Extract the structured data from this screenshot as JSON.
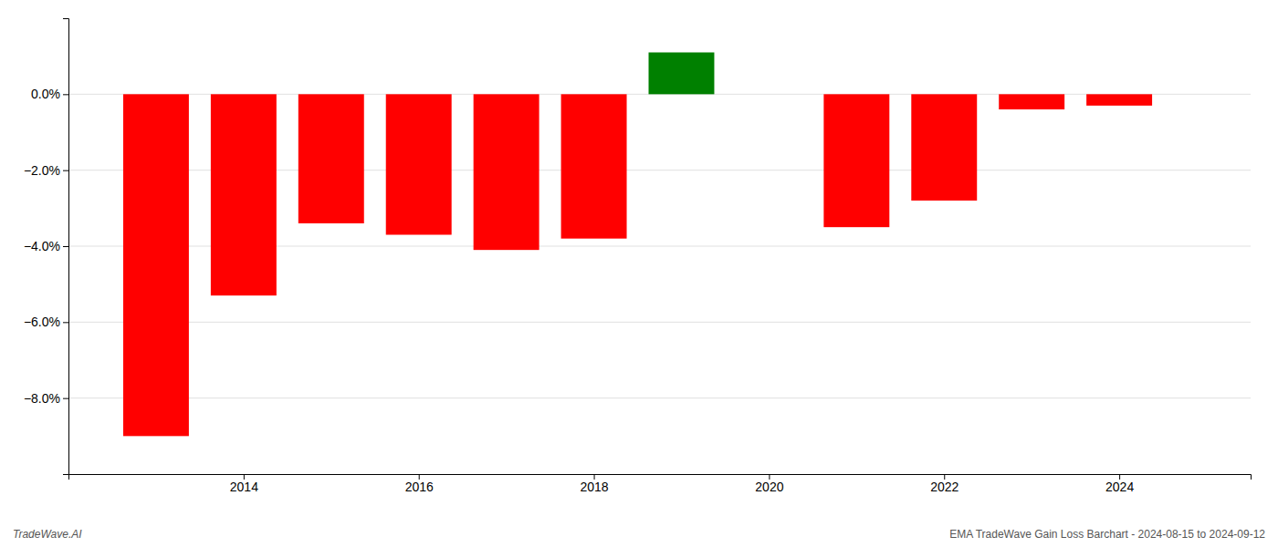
{
  "chart_data": {
    "type": "bar",
    "x": [
      2013,
      2014,
      2015,
      2016,
      2017,
      2018,
      2019,
      2021,
      2022,
      2023,
      2024
    ],
    "values": [
      -9.0,
      -5.3,
      -3.4,
      -3.7,
      -4.1,
      -3.8,
      1.1,
      -3.5,
      -2.8,
      -0.4,
      -0.3
    ],
    "colors": [
      "#ff0000",
      "#ff0000",
      "#ff0000",
      "#ff0000",
      "#ff0000",
      "#ff0000",
      "#008000",
      "#ff0000",
      "#ff0000",
      "#ff0000",
      "#ff0000"
    ],
    "xlim": [
      2012,
      2025.5
    ],
    "xticks": [
      2014,
      2016,
      2018,
      2020,
      2022,
      2024
    ],
    "ylim": [
      -10,
      2
    ],
    "yticks": [
      {
        "value": 0,
        "label": "0.0%"
      },
      {
        "value": -2,
        "label": "−2.0%"
      },
      {
        "value": -4,
        "label": "−4.0%"
      },
      {
        "value": -6,
        "label": "−6.0%"
      },
      {
        "value": -8,
        "label": "−8.0%"
      }
    ],
    "grid": true,
    "annotations": [
      "TradeWave.AI",
      "EMA TradeWave Gain Loss Barchart - 2024-08-15 to 2024-09-12"
    ]
  }
}
